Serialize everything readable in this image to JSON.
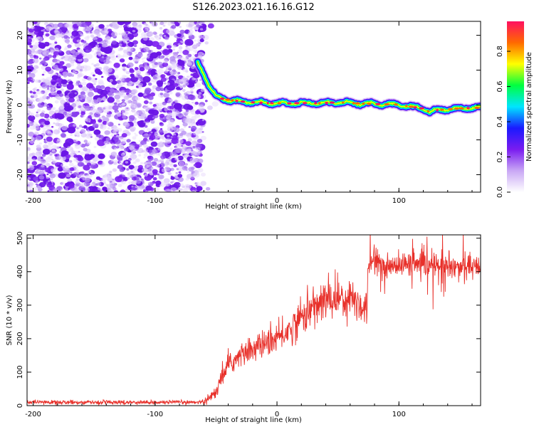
{
  "title": "S126.2023.021.16.16.G12",
  "colors": {
    "snr_line": "#e8302a",
    "axis": "#000000",
    "background": "#ffffff"
  },
  "chart_data": [
    {
      "type": "heatmap",
      "name": "spectrogram",
      "xlabel": "Height of straight line (km)",
      "ylabel": "Frequency (Hz)",
      "xlim": [
        -205,
        167
      ],
      "ylim": [
        -25,
        24
      ],
      "xticks": [
        -200,
        -100,
        0,
        100
      ],
      "yticks": [
        -20,
        -10,
        0,
        10,
        20
      ],
      "colorbar": {
        "label": "Normalized spectral amplitude",
        "range": [
          0.0,
          0.97
        ],
        "ticks": [
          "0.0",
          "0.2",
          "0.4",
          "0.6",
          "0.8"
        ],
        "colormap": [
          "#ffffff",
          "#c9a8f5",
          "#7a1cf0",
          "#1a1aff",
          "#00e5ff",
          "#00ff40",
          "#ffff00",
          "#ff6a00",
          "#ff1060"
        ]
      },
      "noise_region": {
        "x": [
          -205,
          -60
        ],
        "y": [
          -25,
          24
        ]
      },
      "signal_ridge": {
        "x": [
          -65,
          -60,
          -55,
          -50,
          -45,
          -40,
          -30,
          -20,
          -10,
          0,
          10,
          20,
          30,
          40,
          50,
          60,
          70,
          80,
          90,
          100,
          110,
          120,
          125,
          130,
          140,
          150,
          160,
          167
        ],
        "y": [
          12,
          9,
          5,
          2.5,
          1.8,
          1.5,
          1.0,
          0.8,
          0.6,
          0.5,
          0.5,
          0.6,
          0.5,
          0.6,
          0.8,
          0.6,
          0.4,
          0.3,
          0.2,
          0.1,
          -0.5,
          -1.0,
          -2.0,
          -1.5,
          -1.2,
          -1.0,
          -0.8,
          -0.8
        ]
      }
    },
    {
      "type": "line",
      "name": "snr",
      "xlabel": "Height of straight line (km)",
      "ylabel": "SNR (10 * v/v)",
      "xlim": [
        -205,
        167
      ],
      "ylim": [
        0,
        510
      ],
      "xticks": [
        -200,
        -100,
        0,
        100
      ],
      "yticks": [
        0,
        100,
        200,
        300,
        400,
        500
      ],
      "trend": {
        "x": [
          -205,
          -150,
          -100,
          -70,
          -60,
          -50,
          -45,
          -40,
          -30,
          -20,
          -10,
          0,
          10,
          20,
          30,
          40,
          50,
          60,
          65,
          70,
          74,
          75,
          80,
          90,
          100,
          110,
          120,
          130,
          140,
          150,
          160,
          167
        ],
        "y": [
          10,
          10,
          10,
          10,
          12,
          40,
          90,
          120,
          150,
          170,
          185,
          200,
          225,
          265,
          295,
          315,
          322,
          322,
          315,
          295,
          295,
          425,
          425,
          420,
          418,
          425,
          415,
          420,
          410,
          420,
          410,
          415
        ]
      }
    }
  ]
}
